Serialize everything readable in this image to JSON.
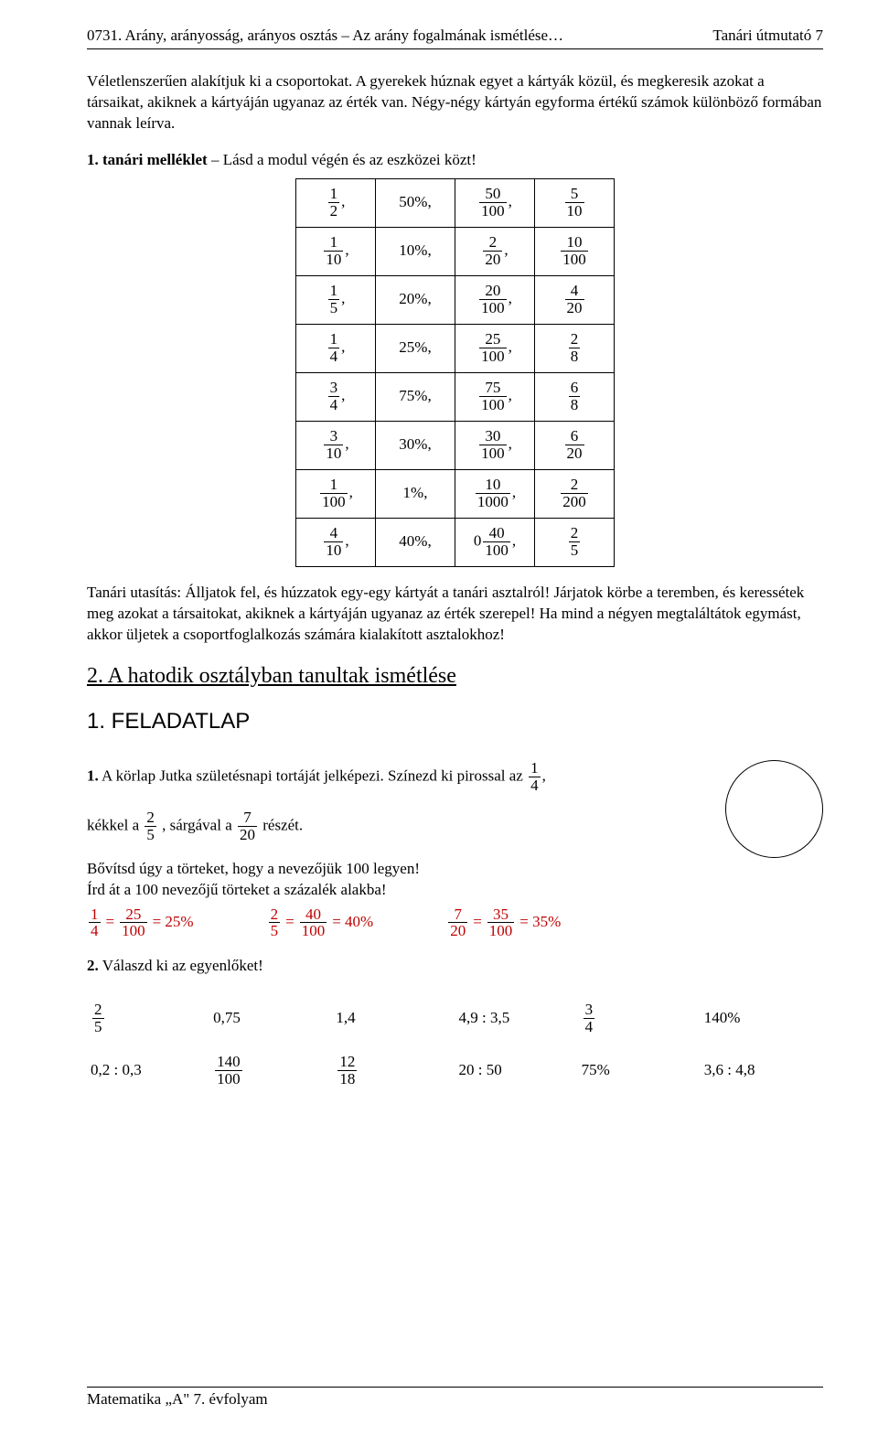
{
  "header": {
    "left": "0731. Arány, arányosság, arányos osztás – Az arány fogalmának ismétlése…",
    "right": "Tanári útmutató   7"
  },
  "intro": "Véletlenszerűen alakítjuk ki a csoportokat. A gyerekek húznak egyet a kártyák közül, és megkeresik azokat a társaikat, akiknek a kártyáján ugyanaz az érték van. Négy-négy kártyán egyforma értékű számok különböző formában vannak leírva.",
  "bold_line_prefix": "1. tanári melléklet",
  "bold_line_rest": " – Lásd a modul végén és az eszközei közt!",
  "card_rows": [
    {
      "a_num": "1",
      "a_den": "2",
      "pct": "50%,",
      "b_num": "50",
      "b_den": "100",
      "c_num": "5",
      "c_den": "10"
    },
    {
      "a_num": "1",
      "a_den": "10",
      "pct": "10%,",
      "b_num": "2",
      "b_den": "20",
      "c_num": "10",
      "c_den": "100"
    },
    {
      "a_num": "1",
      "a_den": "5",
      "pct": "20%,",
      "b_num": "20",
      "b_den": "100",
      "c_num": "4",
      "c_den": "20"
    },
    {
      "a_num": "1",
      "a_den": "4",
      "pct": "25%,",
      "b_num": "25",
      "b_den": "100",
      "c_num": "2",
      "c_den": "8"
    },
    {
      "a_num": "3",
      "a_den": "4",
      "pct": "75%,",
      "b_num": "75",
      "b_den": "100",
      "c_num": "6",
      "c_den": "8"
    },
    {
      "a_num": "3",
      "a_den": "10",
      "pct": "30%,",
      "b_num": "30",
      "b_den": "100",
      "c_num": "6",
      "c_den": "20"
    },
    {
      "a_num": "1",
      "a_den": "100",
      "pct": "1%,",
      "b_num": "10",
      "b_den": "1000",
      "c_num": "2",
      "c_den": "200"
    },
    {
      "a_num": "4",
      "a_den": "10",
      "pct": "40%,",
      "b_prefix": "0",
      "b_num": "40",
      "b_den": "100",
      "c_num": "2",
      "c_den": "5"
    }
  ],
  "post_table": "Tanári utasítás: Álljatok fel, és húzzatok egy-egy kártyát a tanári asztalról! Járjatok körbe a teremben, és keressétek meg azokat a társaitokat, akiknek a kártyáján ugyanaz az érték szerepel! Ha mind a négyen megtaláltátok egymást, akkor üljetek a csoportfoglalkozás számára kialakított asztalokhoz!",
  "section2_title": "2. A hatodik osztályban tanultak ismétlése",
  "feladatlap": "1. FELADATLAP",
  "task1": {
    "line1_prefix": "1.",
    "line1_text_a": " A körlap Jutka születésnapi tortáját jelképezi. Színezd ki pirossal az ",
    "frac_r_num": "1",
    "frac_r_den": "4",
    "line1_suffix": ",",
    "line2_a": "kékkel a ",
    "frac_b_num": "2",
    "frac_b_den": "5",
    "line2_b": ", sárgával a ",
    "frac_y_num": "7",
    "frac_y_den": "20",
    "line2_c": " részét.",
    "line3": "Bővítsd úgy a törteket, hogy a nevezőjük 100 legyen!",
    "line4": "Írd át a 100 nevezőjű törteket a százalék alakba!",
    "eqs": [
      {
        "l_num": "1",
        "l_den": "4",
        "m_num": "25",
        "m_den": "100",
        "pct": "25%"
      },
      {
        "l_num": "2",
        "l_den": "5",
        "m_num": "40",
        "m_den": "100",
        "pct": "40%"
      },
      {
        "l_num": "7",
        "l_den": "20",
        "m_num": "35",
        "m_den": "100",
        "pct": "35%"
      }
    ]
  },
  "task2": {
    "title_prefix": "2.",
    "title_rest": " Válaszd ki az egyenlőket!",
    "grid": [
      [
        {
          "type": "frac",
          "num": "2",
          "den": "5"
        },
        {
          "type": "text",
          "v": "0,75"
        },
        {
          "type": "text",
          "v": "1,4"
        },
        {
          "type": "text",
          "v": "4,9 : 3,5"
        },
        {
          "type": "frac",
          "num": "3",
          "den": "4"
        },
        {
          "type": "text",
          "v": "140%"
        }
      ],
      [
        {
          "type": "text",
          "v": "0,2 : 0,3"
        },
        {
          "type": "frac",
          "num": "140",
          "den": "100"
        },
        {
          "type": "frac",
          "num": "12",
          "den": "18"
        },
        {
          "type": "text",
          "v": "20 : 50"
        },
        {
          "type": "text",
          "v": "75%"
        },
        {
          "type": "text",
          "v": "3,6 : 4,8"
        }
      ]
    ]
  },
  "footer": "Matematika „A\" 7. évfolyam"
}
